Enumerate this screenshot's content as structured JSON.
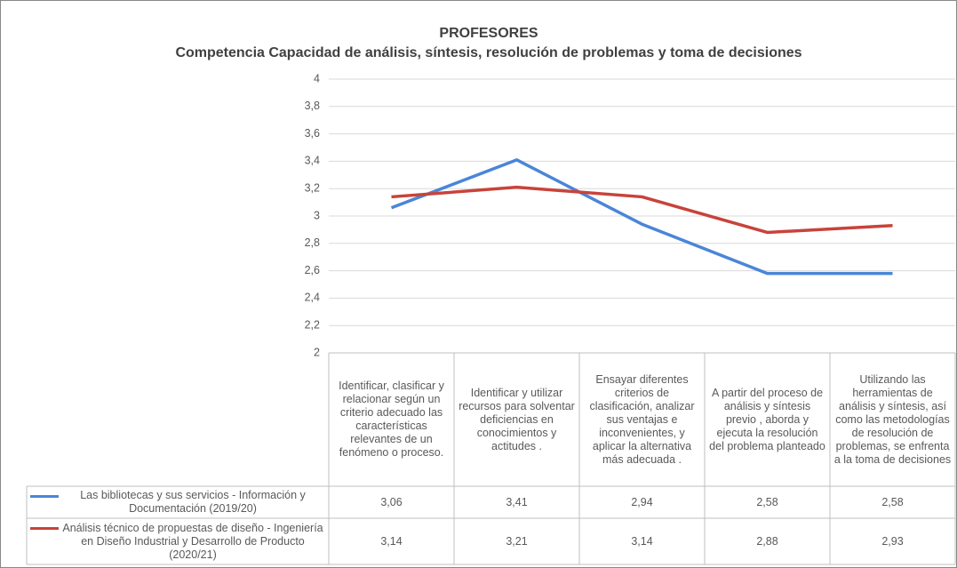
{
  "chart_data": {
    "type": "line",
    "title": "PROFESORES",
    "subtitle": "Competencia Capacidad de análisis, síntesis, resolución de problemas y toma de decisiones",
    "categories": [
      "Identificar, clasificar y relacionar según un criterio adecuado las características relevantes de un fenómeno o proceso.",
      "Identificar y utilizar recursos para solventar deficiencias en conocimientos y actitudes .",
      "Ensayar diferentes criterios de clasificación, analizar sus ventajas e inconvenientes, y aplicar la alternativa más adecuada .",
      "A partir del proceso de análisis y síntesis previo , aborda y ejecuta la resolución del problema planteado",
      "Utilizando las herramientas de análisis y síntesis, así como las metodologías de resolución de problemas, se enfrenta a la toma de decisiones"
    ],
    "series": [
      {
        "name": "Las bibliotecas y sus servicios - Información y Documentación (2019/20)",
        "color": "#4a86d8",
        "values": [
          3.06,
          3.41,
          2.94,
          2.58,
          2.58
        ],
        "value_labels": [
          "3,06",
          "3,41",
          "2,94",
          "2,58",
          "2,58"
        ]
      },
      {
        "name": "Análisis técnico de propuestas de diseño - Ingeniería en Diseño Industrial y Desarrollo de Producto (2020/21)",
        "color": "#c8433a",
        "values": [
          3.14,
          3.21,
          3.14,
          2.88,
          2.93
        ],
        "value_labels": [
          "3,14",
          "3,21",
          "3,14",
          "2,88",
          "2,93"
        ]
      }
    ],
    "ylim": [
      2,
      4
    ],
    "yticks": [
      2,
      {
        "value": 2.2,
        "label": "2,2"
      },
      {
        "value": 2.4,
        "label": "2,4"
      },
      {
        "value": 2.6,
        "label": "2,6"
      },
      {
        "value": 2.8,
        "label": "2,8"
      },
      3,
      {
        "value": 3.2,
        "label": "3,2"
      },
      {
        "value": 3.4,
        "label": "3,4"
      },
      {
        "value": 3.6,
        "label": "3,6"
      },
      {
        "value": 3.8,
        "label": "3,8"
      },
      4
    ],
    "grid": true
  }
}
